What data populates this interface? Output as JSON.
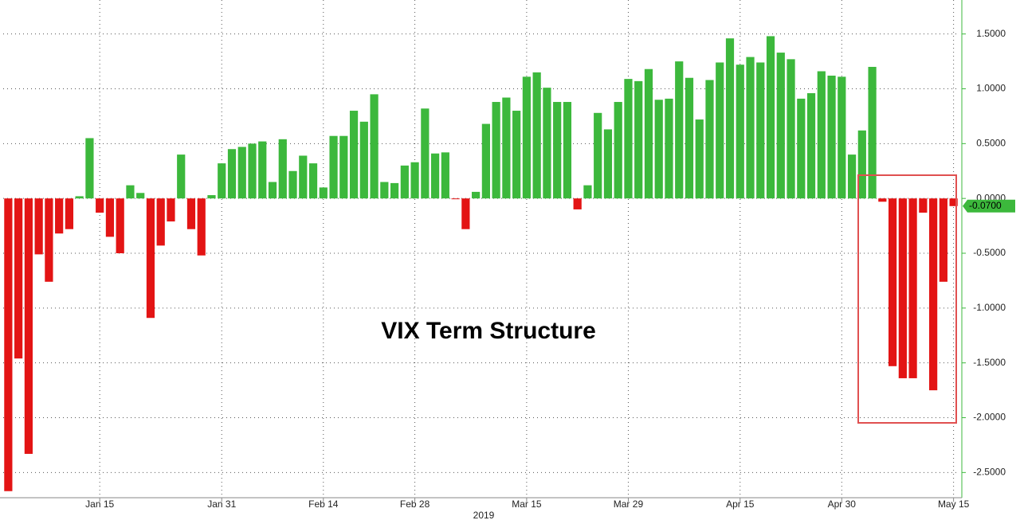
{
  "chart_data": {
    "type": "bar",
    "title": "VIX Term Structure",
    "x_axis_label": "2019",
    "categories": [
      null,
      null,
      null,
      null,
      null,
      null,
      null,
      null,
      null,
      "Jan 15",
      null,
      null,
      null,
      null,
      null,
      null,
      null,
      null,
      null,
      null,
      null,
      "Jan 31",
      null,
      null,
      null,
      null,
      null,
      null,
      null,
      null,
      null,
      "Feb 14",
      null,
      null,
      null,
      null,
      null,
      null,
      null,
      null,
      "Feb 28",
      null,
      null,
      null,
      null,
      null,
      null,
      null,
      null,
      null,
      null,
      "Mar 15",
      null,
      null,
      null,
      null,
      null,
      null,
      null,
      null,
      null,
      "Mar 29",
      null,
      null,
      null,
      null,
      null,
      null,
      null,
      null,
      null,
      null,
      "Apr 15",
      null,
      null,
      null,
      null,
      null,
      null,
      null,
      null,
      null,
      "Apr 30",
      null,
      null,
      null,
      null,
      null,
      null,
      null,
      null,
      null,
      null,
      "May 15"
    ],
    "values": [
      -2.67,
      -1.46,
      -2.33,
      -0.51,
      -0.76,
      -0.32,
      -0.28,
      0.02,
      0.55,
      -0.13,
      -0.35,
      -0.5,
      0.12,
      0.05,
      -1.09,
      -0.43,
      -0.21,
      0.4,
      -0.28,
      -0.52,
      0.03,
      0.32,
      0.45,
      0.47,
      0.5,
      0.52,
      0.15,
      0.54,
      0.25,
      0.39,
      0.32,
      0.1,
      0.57,
      0.57,
      0.8,
      0.7,
      0.95,
      0.15,
      0.14,
      0.3,
      0.33,
      0.82,
      0.41,
      0.42,
      -0.005,
      -0.28,
      0.06,
      0.68,
      0.88,
      0.92,
      0.8,
      1.11,
      1.15,
      1.01,
      0.88,
      0.88,
      -0.1,
      0.12,
      0.78,
      0.63,
      0.88,
      1.09,
      1.07,
      1.18,
      0.9,
      0.91,
      1.25,
      1.1,
      0.72,
      1.08,
      1.24,
      1.46,
      1.22,
      1.29,
      1.24,
      1.48,
      1.33,
      1.27,
      0.91,
      0.96,
      1.16,
      1.12,
      1.11,
      0.4,
      0.62,
      1.2,
      -0.03,
      -1.53,
      -1.64,
      -1.64,
      -0.13,
      -1.75,
      -0.76,
      -0.07
    ],
    "value_labels": [
      null,
      null,
      null,
      null,
      null,
      null,
      null,
      null,
      null,
      null,
      null,
      null,
      null,
      null,
      null,
      null,
      null,
      null,
      null,
      null,
      null,
      null,
      null,
      null,
      null,
      null,
      null,
      null,
      null,
      null,
      null,
      null,
      null,
      null,
      null,
      null,
      null,
      null,
      null,
      null,
      null,
      null,
      null,
      null,
      null,
      null,
      null,
      null,
      null,
      null,
      null,
      null,
      null,
      null,
      null,
      null,
      null,
      null,
      null,
      null,
      null,
      null,
      null,
      null,
      null,
      null,
      null,
      null,
      null,
      null,
      null,
      null,
      null,
      null,
      null,
      null,
      null,
      null,
      null,
      null,
      null,
      null,
      null,
      null,
      null,
      null,
      null,
      null,
      null,
      null,
      null,
      null,
      null,
      "-0.0700"
    ],
    "positive_color": "#3cb83c",
    "negative_color": "#e31414",
    "ylim": [
      -2.73,
      1.81
    ],
    "yticks": [
      {
        "value": 1.5,
        "label": "1.5000"
      },
      {
        "value": 1,
        "label": "1.0000"
      },
      {
        "value": 0.5,
        "label": "0.5000"
      },
      {
        "value": 0,
        "label": "0.0000"
      },
      {
        "value": -0.5,
        "label": "-0.5000"
      },
      {
        "value": -1,
        "label": "-1.0000"
      },
      {
        "value": -1.5,
        "label": "-1.5000"
      },
      {
        "value": -2,
        "label": "-2.0000"
      },
      {
        "value": -2.5,
        "label": "-2.5000"
      }
    ],
    "grid": true
  }
}
